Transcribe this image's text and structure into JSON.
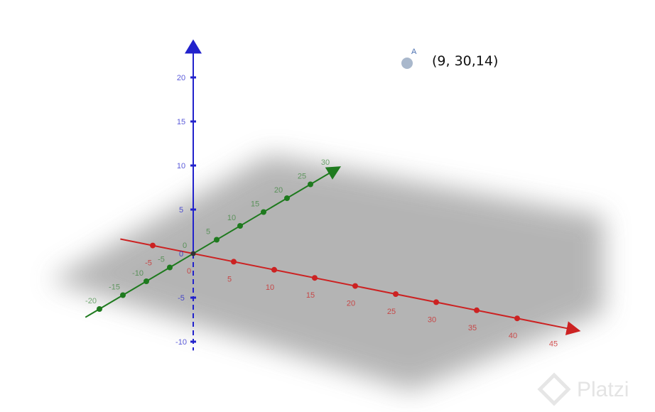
{
  "point": {
    "name": "A",
    "coords_label": "(9, 30,14)",
    "x": 9,
    "y": 30,
    "z": 14,
    "color": "#a9b8cc"
  },
  "axes": {
    "x": {
      "color": "#cc2222",
      "ticks": [
        -5,
        0,
        5,
        10,
        15,
        20,
        25,
        30,
        35,
        40,
        45
      ]
    },
    "y": {
      "color": "#1e7a1e",
      "ticks": [
        -20,
        -15,
        -10,
        -5,
        0,
        5,
        10,
        15,
        20,
        25,
        30
      ]
    },
    "z": {
      "color": "#2222cc",
      "ticks": [
        -10,
        -5,
        0,
        5,
        10,
        15,
        20
      ]
    }
  },
  "plane_color": "#b0b0b0",
  "watermark": "Platzi"
}
